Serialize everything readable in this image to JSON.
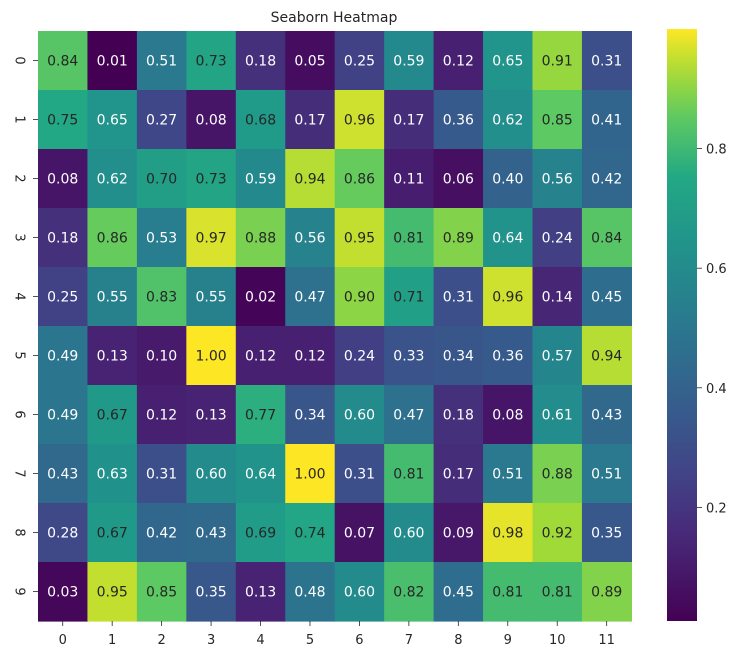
{
  "chart_data": {
    "type": "heatmap",
    "title": "Seaborn Heatmap",
    "colormap": "viridis",
    "x_categories": [
      "0",
      "1",
      "2",
      "3",
      "4",
      "5",
      "6",
      "7",
      "8",
      "9",
      "10",
      "11"
    ],
    "y_categories": [
      "0",
      "1",
      "2",
      "3",
      "4",
      "5",
      "6",
      "7",
      "8",
      "9"
    ],
    "values": [
      [
        0.84,
        0.01,
        0.51,
        0.73,
        0.18,
        0.05,
        0.25,
        0.59,
        0.12,
        0.65,
        0.91,
        0.31
      ],
      [
        0.75,
        0.65,
        0.27,
        0.08,
        0.68,
        0.17,
        0.96,
        0.17,
        0.36,
        0.62,
        0.85,
        0.41
      ],
      [
        0.08,
        0.62,
        0.7,
        0.73,
        0.59,
        0.94,
        0.86,
        0.11,
        0.06,
        0.4,
        0.56,
        0.42
      ],
      [
        0.18,
        0.86,
        0.53,
        0.97,
        0.88,
        0.56,
        0.95,
        0.81,
        0.89,
        0.64,
        0.24,
        0.84
      ],
      [
        0.25,
        0.55,
        0.83,
        0.55,
        0.02,
        0.47,
        0.9,
        0.71,
        0.31,
        0.96,
        0.14,
        0.45
      ],
      [
        0.49,
        0.13,
        0.1,
        1.0,
        0.12,
        0.12,
        0.24,
        0.33,
        0.34,
        0.36,
        0.57,
        0.94
      ],
      [
        0.49,
        0.67,
        0.12,
        0.13,
        0.77,
        0.34,
        0.6,
        0.47,
        0.18,
        0.08,
        0.61,
        0.43
      ],
      [
        0.43,
        0.63,
        0.31,
        0.6,
        0.64,
        1.0,
        0.31,
        0.81,
        0.17,
        0.51,
        0.88,
        0.51
      ],
      [
        0.28,
        0.67,
        0.42,
        0.43,
        0.69,
        0.74,
        0.07,
        0.6,
        0.09,
        0.98,
        0.92,
        0.35
      ],
      [
        0.03,
        0.95,
        0.85,
        0.35,
        0.13,
        0.48,
        0.6,
        0.82,
        0.45,
        0.81,
        0.81,
        0.89
      ]
    ],
    "colorbar": {
      "range": [
        0.01,
        1.0
      ],
      "ticks": [
        0.2,
        0.4,
        0.6,
        0.8
      ],
      "tick_labels": [
        "0.2",
        "0.4",
        "0.6",
        "0.8"
      ]
    },
    "annotation_format": "2 decimals",
    "grid": false,
    "legend": "colorbar-right"
  }
}
